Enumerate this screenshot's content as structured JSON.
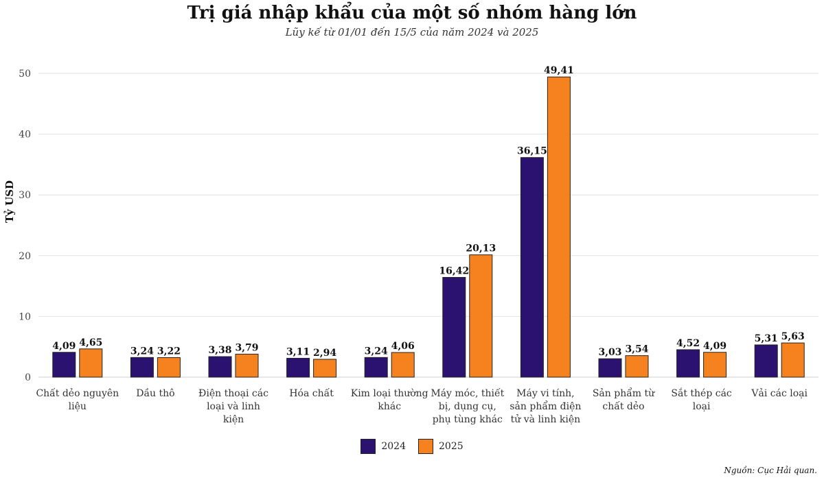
{
  "chart_data": {
    "type": "bar",
    "title": "Trị giá nhập khẩu của một số nhóm hàng lớn",
    "subtitle": "Lũy kế từ 01/01 đến 15/5 của năm 2024 và 2025",
    "xlabel": "",
    "ylabel": "Tỷ USD",
    "ylim": [
      0,
      50
    ],
    "yticks": [
      0,
      10,
      20,
      30,
      40,
      50
    ],
    "grid": true,
    "legend_position": "bottom-center",
    "categories": [
      [
        "Chất dẻo nguyên",
        "liệu"
      ],
      [
        "Dầu thô"
      ],
      [
        "Điện thoại các",
        "loại và linh",
        "kiện"
      ],
      [
        "Hóa chất"
      ],
      [
        "Kim loại thường",
        "khác"
      ],
      [
        "Máy móc, thiết",
        "bị, dụng cụ,",
        "phụ tùng khác"
      ],
      [
        "Máy vi tính,",
        "sản phẩm điện",
        "tử và linh kiện"
      ],
      [
        "Sản phẩm từ",
        "chất dẻo"
      ],
      [
        "Sắt thép các",
        "loại"
      ],
      [
        "Vải các loại"
      ]
    ],
    "series": [
      {
        "name": "2024",
        "color": "#2c1270",
        "values": [
          4.09,
          3.24,
          3.38,
          3.11,
          3.24,
          16.42,
          36.15,
          3.03,
          4.52,
          5.31
        ],
        "labels": [
          "4,09",
          "3,24",
          "3,38",
          "3,11",
          "3,24",
          "16,42",
          "36,15",
          "3,03",
          "4,52",
          "5,31"
        ]
      },
      {
        "name": "2025",
        "color": "#f5821f",
        "values": [
          4.65,
          3.22,
          3.79,
          2.94,
          4.06,
          20.13,
          49.41,
          3.54,
          4.09,
          5.63
        ],
        "labels": [
          "4,65",
          "3,22",
          "3,79",
          "2,94",
          "4,06",
          "20,13",
          "49,41",
          "3,54",
          "4,09",
          "5,63"
        ]
      }
    ]
  },
  "source_note": "Nguồn: Cục Hải quan."
}
